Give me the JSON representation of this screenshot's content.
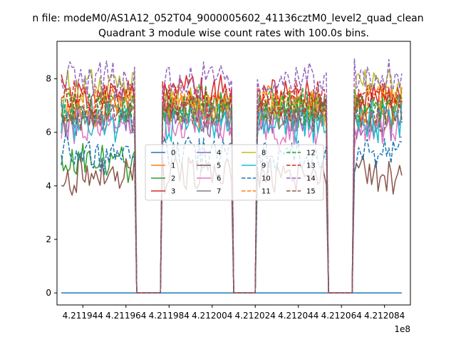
{
  "figure": {
    "suptitle": "n file: modeM0/AS1A12_052T04_9000005602_41136cztM0_level2_quad_clean"
  },
  "chart_data": {
    "type": "line",
    "title": "Quadrant 3 module wise count rates with 100.0s bins.",
    "xlabel": "",
    "ylabel": "",
    "x_offset_label": "1e8",
    "xlim": [
      421193200,
      421209600
    ],
    "ylim": [
      -0.45,
      9.4
    ],
    "x_ticks": [
      421194400,
      421196400,
      421198400,
      421200400,
      421202400,
      421204400,
      421206400,
      421208400
    ],
    "x_tick_labels": [
      "4.211944",
      "4.211964",
      "4.211984",
      "4.212004",
      "4.212024",
      "4.212044",
      "4.212064",
      "4.212084"
    ],
    "y_ticks": [
      0,
      2,
      4,
      6,
      8
    ],
    "y_tick_labels": [
      "0",
      "2",
      "4",
      "6",
      "8"
    ],
    "grid": false,
    "legend": {
      "placement": "center",
      "columns": 4
    },
    "segments": [
      {
        "start": 421193400,
        "end": 421196800
      },
      {
        "start": 421198100,
        "end": 421201300
      },
      {
        "start": 421202500,
        "end": 421205700
      },
      {
        "start": 421207000,
        "end": 421209200
      }
    ],
    "gaps": [
      {
        "from": 421196900,
        "to": 421198000
      },
      {
        "from": 421201400,
        "to": 421202400
      },
      {
        "from": 421205800,
        "to": 421206900
      }
    ],
    "series": [
      {
        "name": "0",
        "color": "#1f77b4",
        "dash": false,
        "level": 0.0
      },
      {
        "name": "1",
        "color": "#ff7f0e",
        "dash": false,
        "level": 6.9
      },
      {
        "name": "2",
        "color": "#2ca02c",
        "dash": false,
        "level": 6.8
      },
      {
        "name": "3",
        "color": "#d62728",
        "dash": false,
        "level": 7.4
      },
      {
        "name": "4",
        "color": "#9467bd",
        "dash": false,
        "level": 6.5
      },
      {
        "name": "5",
        "color": "#8c564b",
        "dash": false,
        "level": 4.45
      },
      {
        "name": "6",
        "color": "#e377c2",
        "dash": false,
        "level": 6.2
      },
      {
        "name": "7",
        "color": "#7f7f7f",
        "dash": false,
        "level": 6.7
      },
      {
        "name": "8",
        "color": "#bcbd22",
        "dash": false,
        "level": 7.0
      },
      {
        "name": "9",
        "color": "#17becf",
        "dash": false,
        "level": 6.4
      },
      {
        "name": "10",
        "color": "#1f77b4",
        "dash": true,
        "level": 5.2
      },
      {
        "name": "11",
        "color": "#ff7f0e",
        "dash": true,
        "level": 7.1
      },
      {
        "name": "12",
        "color": "#2ca02c",
        "dash": true,
        "level": 7.0
      },
      {
        "name": "13",
        "color": "#d62728",
        "dash": true,
        "level": 7.2
      },
      {
        "name": "14",
        "color": "#9467bd",
        "dash": true,
        "level": 7.9
      },
      {
        "name": "15",
        "color": "#8c564b",
        "dash": true,
        "level": 6.6
      }
    ],
    "special_levels": [
      {
        "series": "2",
        "segment": 0,
        "level": 4.9
      },
      {
        "series": "8",
        "segment": 0,
        "level": 7.7
      },
      {
        "series": "8",
        "segment": 3,
        "level": 7.8
      },
      {
        "series": "14",
        "segment": 3,
        "level": 8.1
      }
    ]
  }
}
